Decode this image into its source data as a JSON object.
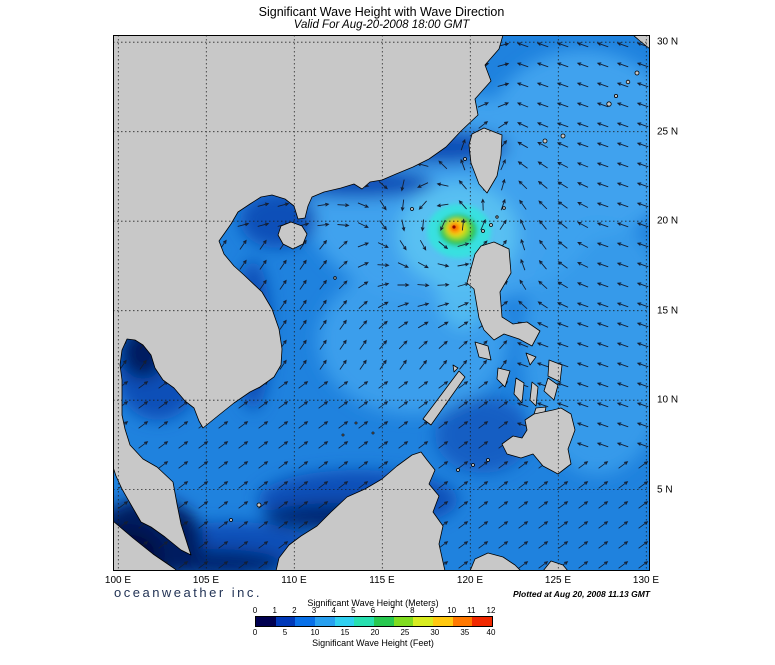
{
  "title": "Significant Wave Height with Wave Direction",
  "subtitle": "Valid For Aug-20-2008 18:00 GMT",
  "branding": "oceanweather inc.",
  "plotted_note": "Plotted at Aug 20, 2008 11.13 GMT",
  "axes": {
    "lon_ticks": [
      "100 E",
      "105 E",
      "110 E",
      "115 E",
      "120 E",
      "125 E",
      "130 E"
    ],
    "lat_ticks": [
      "30 N",
      "25 N",
      "20 N",
      "15 N",
      "10 N",
      "5 N"
    ]
  },
  "legend": {
    "meters_label": "Significant Wave Height (Meters)",
    "feet_label": "Significant Wave Height (Feet)",
    "meters_ticks": [
      0,
      1,
      2,
      3,
      4,
      5,
      6,
      7,
      8,
      9,
      10,
      11,
      12
    ],
    "feet_ticks": [
      0,
      5,
      10,
      15,
      20,
      25,
      30,
      35,
      40
    ],
    "colors": [
      "#000050",
      "#0038B8",
      "#0870E8",
      "#28A0F0",
      "#30D0F0",
      "#28E0B0",
      "#28C850",
      "#80DC20",
      "#D8EC20",
      "#FFC810",
      "#FF7800",
      "#F02800"
    ]
  },
  "map": {
    "region": "South China Sea and Western Pacific",
    "depicted_features": {
      "storm_peak_color": "#F02800",
      "storm_center_approx": "119.4 E, 19.7 N",
      "ambient_wave_height_m": "1-2",
      "storm_peak_wave_height_m": "11-12"
    }
  }
}
